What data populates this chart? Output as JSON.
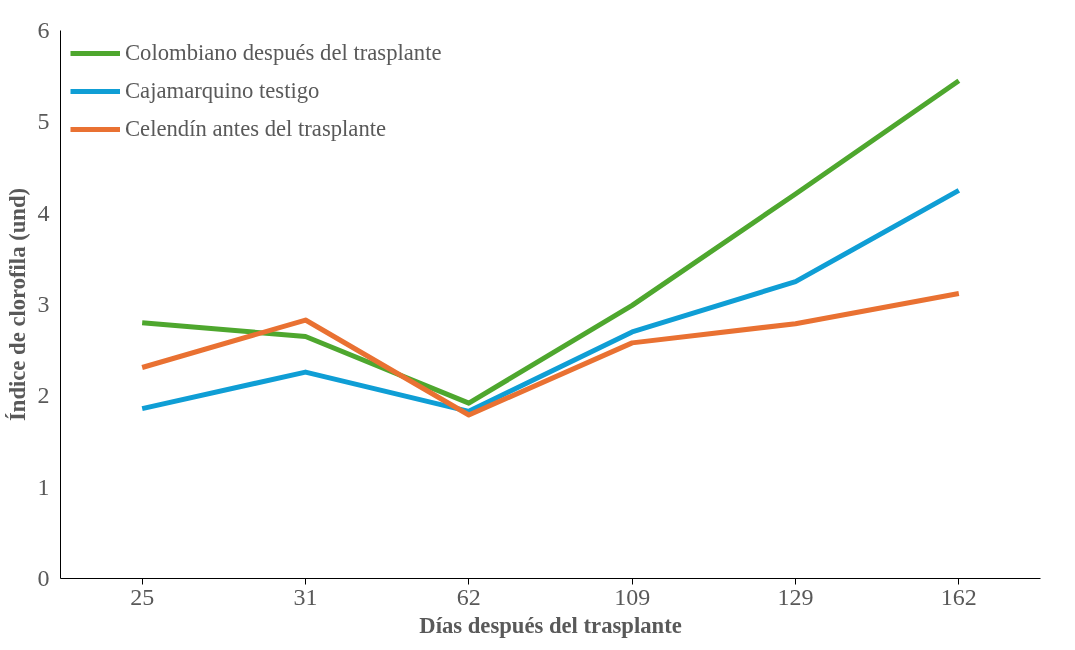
{
  "chart_data": {
    "type": "line",
    "xlabel": "Días después del trasplante",
    "ylabel": "Índice de clorofila (und)",
    "categories": [
      "25",
      "31",
      "62",
      "109",
      "129",
      "162"
    ],
    "ylim": [
      0,
      6
    ],
    "yticks": [
      0,
      1,
      2,
      3,
      4,
      5,
      6
    ],
    "grid": false,
    "legend": "top left",
    "marker": "none",
    "line_style": "solid",
    "series": [
      {
        "name": "Colombiano después del trasplante",
        "color": "#4ea72e",
        "values": [
          2.8,
          2.65,
          1.92,
          2.99,
          4.21,
          5.45
        ]
      },
      {
        "name": "Cajamarquino testigo",
        "color": "#0f9ed5",
        "values": [
          1.86,
          2.26,
          1.83,
          2.7,
          3.25,
          4.25
        ]
      },
      {
        "name": "Celendín antes del trasplante",
        "color": "#e97132",
        "values": [
          2.31,
          2.83,
          1.79,
          2.58,
          2.79,
          3.12
        ]
      }
    ]
  }
}
